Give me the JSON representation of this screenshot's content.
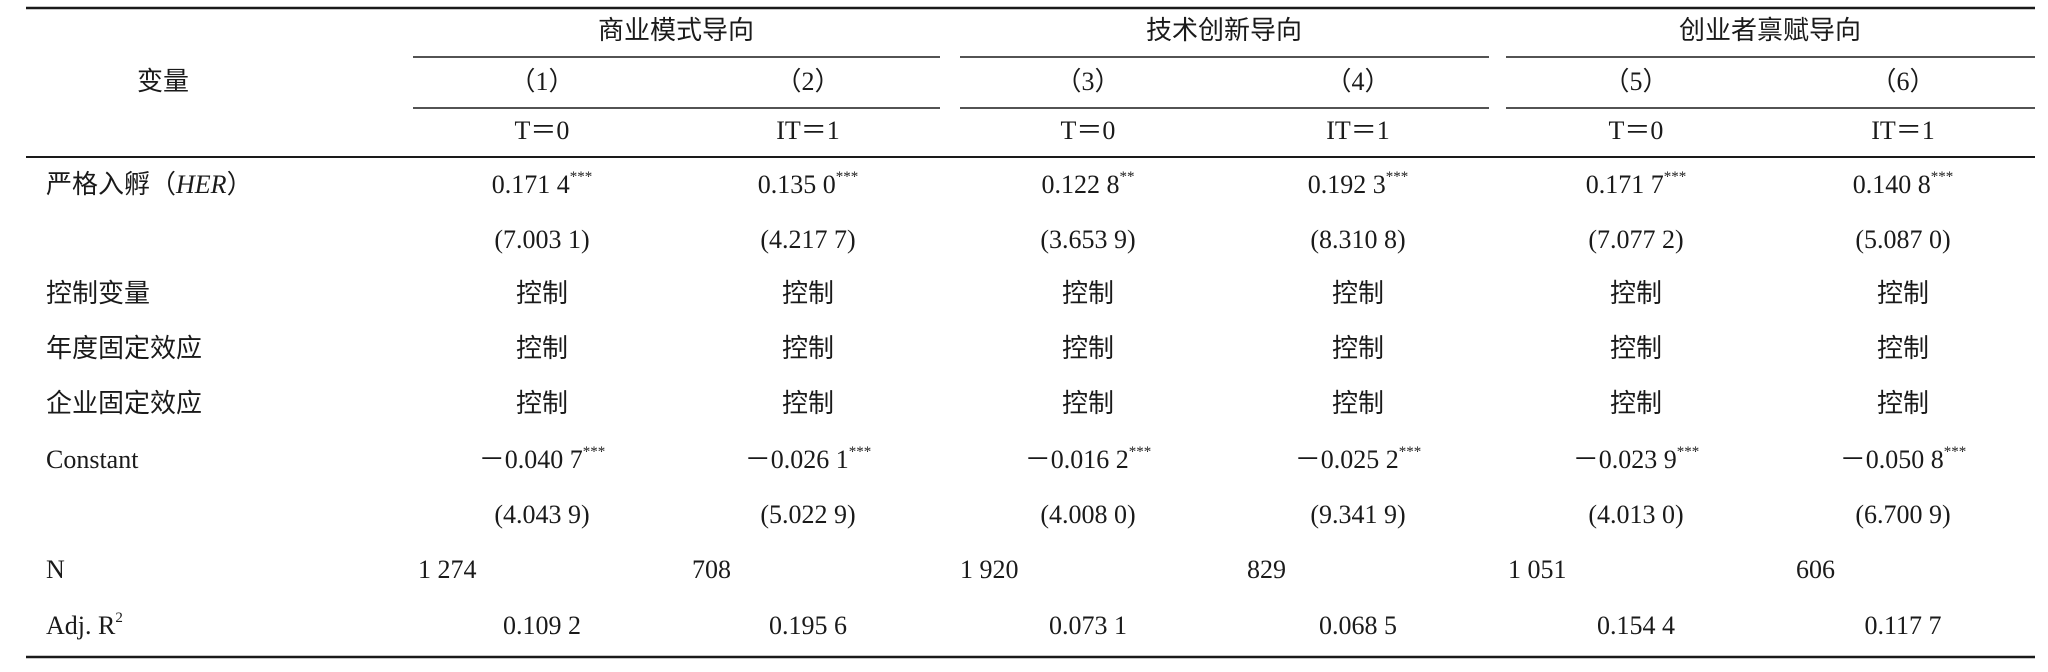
{
  "table": {
    "header": {
      "variable": "变量",
      "groups": [
        "商业模式导向",
        "技术创新导向",
        "创业者禀赋导向"
      ],
      "columns": [
        "（1）",
        "（2）",
        "（3）",
        "（4）",
        "（5）",
        "（6）"
      ],
      "conditions": [
        "T＝0",
        "IT＝1",
        "T＝0",
        "IT＝1",
        "T＝0",
        "IT＝1"
      ]
    },
    "rows": [
      {
        "label": {
          "text": "严格入孵（",
          "italic": "HER",
          "tail": "）"
        },
        "values": [
          {
            "text": "0.171 4",
            "sup": "***"
          },
          {
            "text": "0.135 0",
            "sup": "***"
          },
          {
            "text": "0.122 8",
            "sup": "**"
          },
          {
            "text": "0.192 3",
            "sup": "***"
          },
          {
            "text": "0.171 7",
            "sup": "***"
          },
          {
            "text": "0.140 8",
            "sup": "***"
          }
        ]
      },
      {
        "label": null,
        "values": [
          "(7.003 1)",
          "(4.217 7)",
          "(3.653 9)",
          "(8.310 8)",
          "(7.077 2)",
          "(5.087 0)"
        ]
      },
      {
        "label": {
          "text": "控制变量"
        },
        "values": [
          "控制",
          "控制",
          "控制",
          "控制",
          "控制",
          "控制"
        ]
      },
      {
        "label": {
          "text": "年度固定效应"
        },
        "values": [
          "控制",
          "控制",
          "控制",
          "控制",
          "控制",
          "控制"
        ]
      },
      {
        "label": {
          "text": "企业固定效应"
        },
        "values": [
          "控制",
          "控制",
          "控制",
          "控制",
          "控制",
          "控制"
        ]
      },
      {
        "label": {
          "text": "Constant"
        },
        "values": [
          {
            "text": "－0.040 7",
            "sup": "***"
          },
          {
            "text": "－0.026 1",
            "sup": "***"
          },
          {
            "text": "－0.016 2",
            "sup": "***"
          },
          {
            "text": "－0.025 2",
            "sup": "***"
          },
          {
            "text": "－0.023 9",
            "sup": "***"
          },
          {
            "text": "－0.050 8",
            "sup": "***"
          }
        ]
      },
      {
        "label": null,
        "values": [
          "(4.043 9)",
          "(5.022 9)",
          "(4.008 0)",
          "(9.341 9)",
          "(4.013 0)",
          "(6.700 9)"
        ]
      },
      {
        "label": {
          "text": "N"
        },
        "align": "left",
        "values": [
          "1 274",
          "708",
          "1 920",
          "829",
          "1 051",
          "606"
        ]
      },
      {
        "label": {
          "text": "Adj. R",
          "sup": "2"
        },
        "values": [
          "0.109 2",
          "0.195 6",
          "0.073 1",
          "0.068 5",
          "0.154 4",
          "0.117 7"
        ]
      }
    ]
  }
}
